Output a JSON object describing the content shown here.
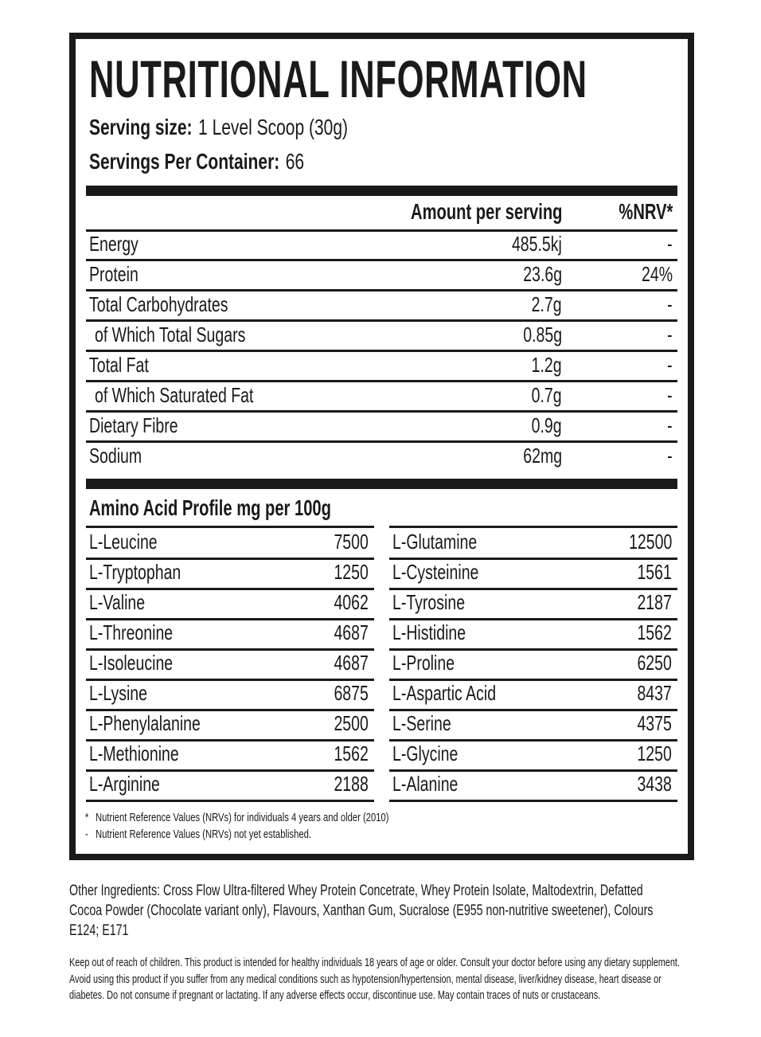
{
  "header": {
    "title": "NUTRITIONAL INFORMATION",
    "serving_size_label": "Serving size:",
    "serving_size": "1 Level Scoop (30g)",
    "servings_label": "Servings Per Container:",
    "servings": "66"
  },
  "nutrition": {
    "columns": [
      "Amount per serving",
      "%NRV*"
    ],
    "rows": [
      {
        "label": "Energy",
        "amount": "485.5kj",
        "nrv": "-"
      },
      {
        "label": "Protein",
        "amount": "23.6g",
        "nrv": "24%"
      },
      {
        "label": "Total Carbohydrates",
        "amount": "2.7g",
        "nrv": "-"
      },
      {
        "label": "of Which Total Sugars",
        "amount": "0.85g",
        "nrv": "-",
        "indent": true
      },
      {
        "label": "Total Fat",
        "amount": "1.2g",
        "nrv": "-"
      },
      {
        "label": "of Which Saturated Fat",
        "amount": "0.7g",
        "nrv": "-",
        "indent": true
      },
      {
        "label": "Dietary Fibre",
        "amount": "0.9g",
        "nrv": "-"
      },
      {
        "label": "Sodium",
        "amount": "62mg",
        "nrv": "-"
      }
    ]
  },
  "amino": {
    "title": "Amino Acid Profile mg per 100g",
    "left": [
      [
        "L-Leucine",
        "7500"
      ],
      [
        "L-Tryptophan",
        "1250"
      ],
      [
        "L-Valine",
        "4062"
      ],
      [
        "L-Threonine",
        "4687"
      ],
      [
        "L-Isoleucine",
        "4687"
      ],
      [
        "L-Lysine",
        "6875"
      ],
      [
        "L-Phenylalanine",
        "2500"
      ],
      [
        "L-Methionine",
        "1562"
      ],
      [
        "L-Arginine",
        "2188"
      ]
    ],
    "right": [
      [
        "L-Glutamine",
        "12500"
      ],
      [
        "L-Cysteinine",
        "1561"
      ],
      [
        "L-Tyrosine",
        "2187"
      ],
      [
        "L-Histidine",
        "1562"
      ],
      [
        "L-Proline",
        "6250"
      ],
      [
        "L-Aspartic Acid",
        "8437"
      ],
      [
        "L-Serine",
        "4375"
      ],
      [
        "L-Glycine",
        "1250"
      ],
      [
        "L-Alanine",
        "3438"
      ]
    ]
  },
  "footnotes": [
    {
      "mark": "*",
      "text": "Nutrient Reference Values (NRVs) for individuals 4 years and older (2010)"
    },
    {
      "mark": "-",
      "text": "Nutrient Reference Values (NRVs) not yet established."
    }
  ],
  "other_ingredients": "Other Ingredients: Cross Flow Ultra-filtered Whey Protein Concetrate, Whey Protein Isolate, Maltodextrin, Defatted Cocoa Powder (Chocolate variant only), Flavours, Xanthan Gum, Sucralose (E955 non-nutritive sweetener), Colours E124; E171",
  "warning": "Keep out of reach of children. This product is intended for healthy individuals 18 years of age or older. Consult your doctor before using any dietary supplement. Avoid using this product if you suffer from any medical conditions such as hypotension/hypertension, mental disease, liver/kidney disease, heart disease or diabetes. Do not consume if pregnant or lactating. If any adverse effects occur, discontinue use. May contain traces of nuts or crustaceans."
}
